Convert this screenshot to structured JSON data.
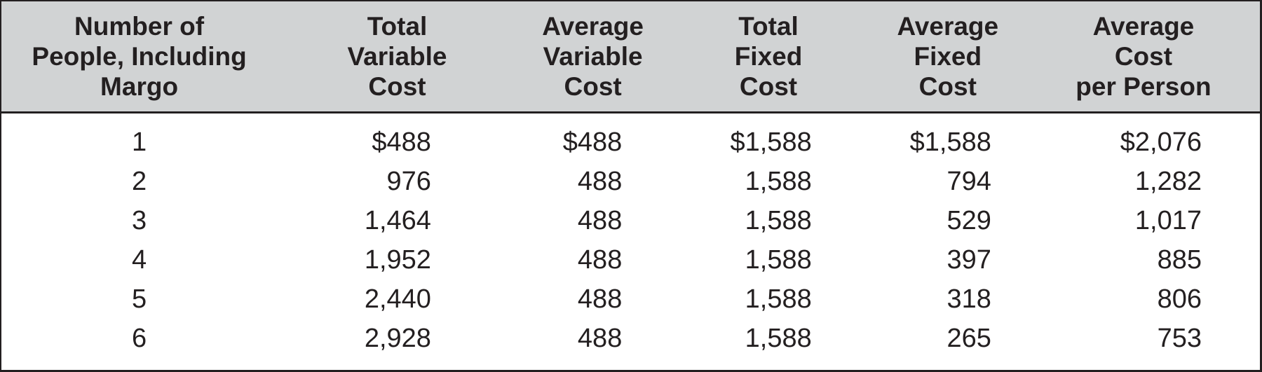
{
  "colors": {
    "header_bg": "#d1d3d4",
    "text": "#231f20",
    "border": "#231f20",
    "body_bg": "#ffffff"
  },
  "table": {
    "columns": [
      {
        "id": "people",
        "lines": [
          "Number of",
          "People, Including",
          "Margo"
        ]
      },
      {
        "id": "total-variable-cost",
        "lines": [
          "Total",
          "Variable",
          "Cost"
        ]
      },
      {
        "id": "average-variable-cost",
        "lines": [
          "Average",
          "Variable",
          "Cost"
        ]
      },
      {
        "id": "total-fixed-cost",
        "lines": [
          "Total",
          "Fixed",
          "Cost"
        ]
      },
      {
        "id": "average-fixed-cost",
        "lines": [
          "Average",
          "Fixed",
          "Cost"
        ]
      },
      {
        "id": "average-cost-per-person",
        "lines": [
          "Average",
          "Cost",
          "per Person"
        ]
      }
    ],
    "rows": [
      [
        "1",
        "$488",
        "$488",
        "$1,588",
        "$1,588",
        "$2,076"
      ],
      [
        "2",
        "976",
        "488",
        "1,588",
        "794",
        "1,282"
      ],
      [
        "3",
        "1,464",
        "488",
        "1,588",
        "529",
        "1,017"
      ],
      [
        "4",
        "1,952",
        "488",
        "1,588",
        "397",
        "885"
      ],
      [
        "5",
        "2,440",
        "488",
        "1,588",
        "318",
        "806"
      ],
      [
        "6",
        "2,928",
        "488",
        "1,588",
        "265",
        "753"
      ]
    ]
  },
  "chart_data": {
    "type": "table",
    "title": "",
    "columns": [
      "Number of People, Including Margo",
      "Total Variable Cost",
      "Average Variable Cost",
      "Total Fixed Cost",
      "Average Fixed Cost",
      "Average Cost per Person"
    ],
    "rows": [
      [
        1,
        488,
        488,
        1588,
        1588,
        2076
      ],
      [
        2,
        976,
        488,
        1588,
        794,
        1282
      ],
      [
        3,
        1464,
        488,
        1588,
        529,
        1017
      ],
      [
        4,
        1952,
        488,
        1588,
        397,
        885
      ],
      [
        5,
        2440,
        488,
        1588,
        318,
        806
      ],
      [
        6,
        2928,
        488,
        1588,
        265,
        753
      ]
    ],
    "units": "USD",
    "layout": {
      "header_background": "#d1d3d4",
      "gridlines": false,
      "first_column_align": "center",
      "value_columns_align": "right"
    }
  }
}
